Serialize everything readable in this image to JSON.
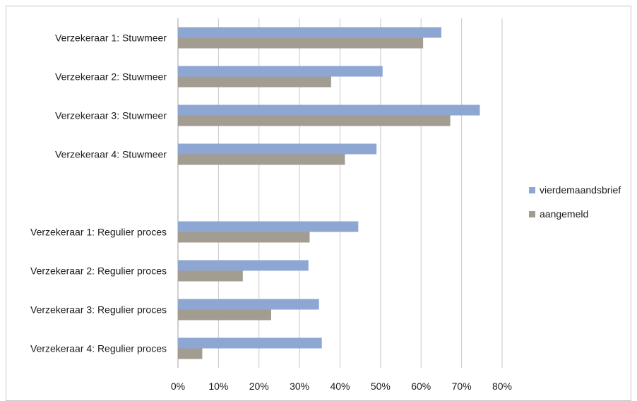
{
  "chart_data": {
    "type": "bar",
    "orientation": "horizontal",
    "categories": [
      "Verzekeraar 1: Stuwmeer",
      "Verzekeraar 2: Stuwmeer",
      "Verzekeraar 3: Stuwmeer",
      "Verzekeraar 4: Stuwmeer",
      "",
      "Verzekeraar 1: Regulier proces",
      "Verzekeraar 2: Regulier proces",
      "Verzekeraar 3: Regulier proces",
      "Verzekeraar 4: Regulier proces"
    ],
    "series": [
      {
        "name": "vierdemaandsbrief",
        "color": "#8ea6d2",
        "values": [
          0.65,
          0.505,
          0.745,
          0.49,
          null,
          0.445,
          0.322,
          0.348,
          0.355
        ]
      },
      {
        "name": "aangemeld",
        "color": "#a39c91",
        "values": [
          0.605,
          0.378,
          0.672,
          0.412,
          null,
          0.325,
          0.16,
          0.23,
          0.06
        ]
      }
    ],
    "x_ticks": [
      "0%",
      "10%",
      "20%",
      "30%",
      "40%",
      "50%",
      "60%",
      "70%",
      "80%"
    ],
    "xlim": [
      0,
      0.8
    ],
    "grid": true,
    "legend_position": "right",
    "title": "",
    "xlabel": "",
    "ylabel": ""
  }
}
